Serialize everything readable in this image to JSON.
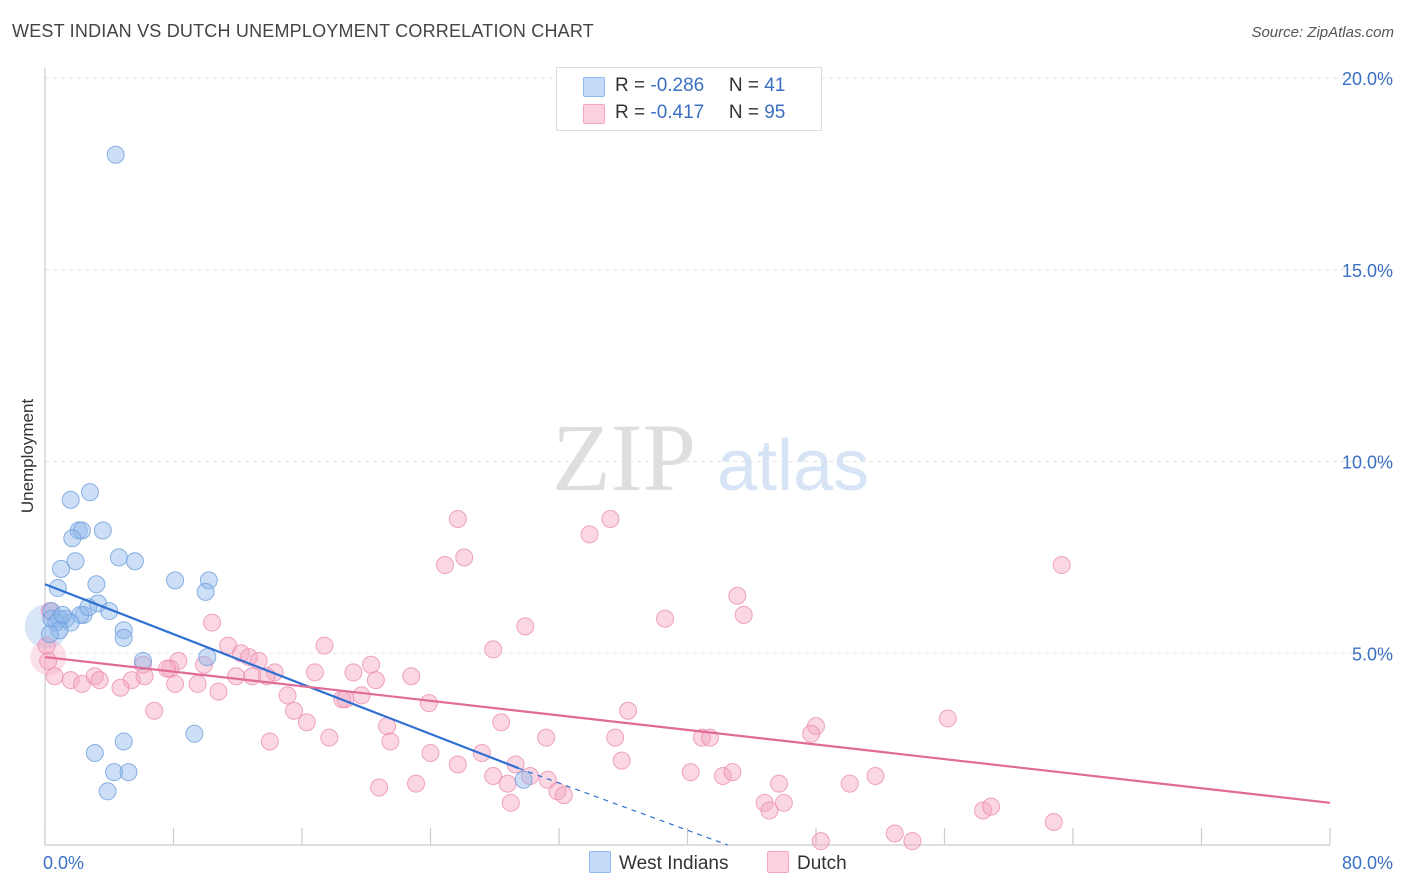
{
  "header": {
    "title": "WEST INDIAN VS DUTCH UNEMPLOYMENT CORRELATION CHART",
    "source": "Source: ZipAtlas.com"
  },
  "watermark": {
    "zip": "ZIP",
    "atlas": "atlas"
  },
  "legend": {
    "rows": [
      {
        "r_label": "R = ",
        "r_value": "-0.286",
        "n_label": "N = ",
        "n_value": "41",
        "color": "#8fb8ec"
      },
      {
        "r_label": "R = ",
        "r_value": "-0.417",
        "n_label": "N = ",
        "n_value": "95",
        "color": "#f4a6c0"
      }
    ]
  },
  "chart_data": {
    "type": "scatter",
    "title": "WEST INDIAN VS DUTCH UNEMPLOYMENT CORRELATION CHART",
    "xlabel": "",
    "ylabel": "Unemployment",
    "xlim": [
      0,
      80
    ],
    "ylim": [
      0,
      20
    ],
    "x_tick_labels": [
      "0.0%",
      "80.0%"
    ],
    "y_ticks": [
      5,
      10,
      15,
      20
    ],
    "y_tick_labels": [
      "5.0%",
      "10.0%",
      "15.0%",
      "20.0%"
    ],
    "grid": "horizontal dashed",
    "legend_position": "top-center",
    "series": [
      {
        "name": "West Indians",
        "color": "#8fb8ec",
        "line_color": "#2f6fd1",
        "r": -0.286,
        "n": 41,
        "trend": {
          "x": [
            0,
            29.5
          ],
          "y": [
            6.8,
            2.0
          ]
        },
        "trend_dashed": {
          "x": [
            29.5,
            42.5
          ],
          "y": [
            2.0,
            0.0
          ]
        },
        "points": [
          [
            4.4,
            18.0
          ],
          [
            1.6,
            9.0
          ],
          [
            2.8,
            9.2
          ],
          [
            2.1,
            8.2
          ],
          [
            2.3,
            8.2
          ],
          [
            3.6,
            8.2
          ],
          [
            1.7,
            8.0
          ],
          [
            1.0,
            7.2
          ],
          [
            1.9,
            7.4
          ],
          [
            4.6,
            7.5
          ],
          [
            5.6,
            7.4
          ],
          [
            8.1,
            6.9
          ],
          [
            10.2,
            6.9
          ],
          [
            3.2,
            6.8
          ],
          [
            0.8,
            6.7
          ],
          [
            10.0,
            6.6
          ],
          [
            0.4,
            6.1
          ],
          [
            0.4,
            5.9
          ],
          [
            2.4,
            6.0
          ],
          [
            2.2,
            6.0
          ],
          [
            2.7,
            6.2
          ],
          [
            3.3,
            6.3
          ],
          [
            4.0,
            6.1
          ],
          [
            1.3,
            5.9
          ],
          [
            0.9,
            5.9
          ],
          [
            0.7,
            5.8
          ],
          [
            1.6,
            5.8
          ],
          [
            0.9,
            5.6
          ],
          [
            4.9,
            5.6
          ],
          [
            4.9,
            5.4
          ],
          [
            10.1,
            4.9
          ],
          [
            6.1,
            4.8
          ],
          [
            9.3,
            2.9
          ],
          [
            4.9,
            2.7
          ],
          [
            3.1,
            2.4
          ],
          [
            4.3,
            1.9
          ],
          [
            5.2,
            1.9
          ],
          [
            3.9,
            1.4
          ],
          [
            29.8,
            1.7
          ],
          [
            0.3,
            5.5
          ],
          [
            1.1,
            6.0
          ]
        ]
      },
      {
        "name": "Dutch",
        "color": "#f4a6c0",
        "line_color": "#e06a98",
        "r": -0.417,
        "n": 95,
        "trend": {
          "x": [
            0,
            80
          ],
          "y": [
            4.9,
            1.1
          ]
        },
        "points": [
          [
            25.7,
            8.5
          ],
          [
            35.2,
            8.5
          ],
          [
            33.9,
            8.1
          ],
          [
            26.1,
            7.5
          ],
          [
            24.9,
            7.3
          ],
          [
            63.3,
            7.3
          ],
          [
            43.1,
            6.5
          ],
          [
            43.5,
            6.0
          ],
          [
            38.6,
            5.9
          ],
          [
            10.4,
            5.8
          ],
          [
            29.9,
            5.7
          ],
          [
            11.4,
            5.2
          ],
          [
            17.4,
            5.2
          ],
          [
            27.9,
            5.1
          ],
          [
            12.2,
            5.0
          ],
          [
            12.7,
            4.9
          ],
          [
            8.3,
            4.8
          ],
          [
            6.1,
            4.7
          ],
          [
            20.3,
            4.7
          ],
          [
            7.8,
            4.6
          ],
          [
            9.9,
            4.7
          ],
          [
            14.3,
            4.5
          ],
          [
            16.8,
            4.5
          ],
          [
            19.2,
            4.5
          ],
          [
            11.9,
            4.4
          ],
          [
            13.8,
            4.4
          ],
          [
            12.9,
            4.4
          ],
          [
            20.6,
            4.3
          ],
          [
            3.1,
            4.4
          ],
          [
            1.6,
            4.3
          ],
          [
            3.4,
            4.3
          ],
          [
            5.4,
            4.3
          ],
          [
            6.2,
            4.4
          ],
          [
            8.1,
            4.2
          ],
          [
            4.7,
            4.1
          ],
          [
            9.5,
            4.2
          ],
          [
            10.8,
            4.0
          ],
          [
            15.1,
            3.9
          ],
          [
            18.7,
            3.8
          ],
          [
            19.7,
            3.9
          ],
          [
            23.9,
            3.7
          ],
          [
            6.8,
            3.5
          ],
          [
            15.5,
            3.5
          ],
          [
            16.3,
            3.2
          ],
          [
            21.3,
            3.1
          ],
          [
            28.4,
            3.2
          ],
          [
            36.3,
            3.5
          ],
          [
            48.0,
            3.1
          ],
          [
            47.7,
            2.9
          ],
          [
            56.2,
            3.3
          ],
          [
            17.7,
            2.8
          ],
          [
            14.0,
            2.7
          ],
          [
            21.5,
            2.7
          ],
          [
            31.2,
            2.8
          ],
          [
            35.5,
            2.8
          ],
          [
            40.9,
            2.8
          ],
          [
            41.4,
            2.8
          ],
          [
            24.0,
            2.4
          ],
          [
            25.7,
            2.1
          ],
          [
            27.2,
            2.4
          ],
          [
            35.9,
            2.2
          ],
          [
            29.3,
            2.1
          ],
          [
            27.9,
            1.8
          ],
          [
            40.2,
            1.9
          ],
          [
            42.2,
            1.8
          ],
          [
            42.8,
            1.9
          ],
          [
            51.7,
            1.8
          ],
          [
            23.1,
            1.6
          ],
          [
            28.8,
            1.6
          ],
          [
            30.2,
            1.8
          ],
          [
            31.3,
            1.7
          ],
          [
            20.8,
            1.5
          ],
          [
            31.9,
            1.4
          ],
          [
            32.3,
            1.3
          ],
          [
            45.7,
            1.6
          ],
          [
            50.1,
            1.6
          ],
          [
            29.0,
            1.1
          ],
          [
            44.8,
            1.1
          ],
          [
            46.0,
            1.1
          ],
          [
            45.1,
            0.9
          ],
          [
            58.4,
            0.9
          ],
          [
            58.9,
            1.0
          ],
          [
            62.8,
            0.6
          ],
          [
            52.9,
            0.3
          ],
          [
            48.3,
            0.1
          ],
          [
            54.0,
            0.1
          ],
          [
            18.5,
            3.8
          ],
          [
            0.6,
            4.4
          ],
          [
            7.6,
            4.6
          ],
          [
            2.3,
            4.2
          ],
          [
            0.2,
            4.8
          ],
          [
            0.1,
            5.2
          ],
          [
            0.3,
            6.1
          ],
          [
            22.8,
            4.4
          ],
          [
            13.3,
            4.8
          ]
        ]
      }
    ]
  }
}
